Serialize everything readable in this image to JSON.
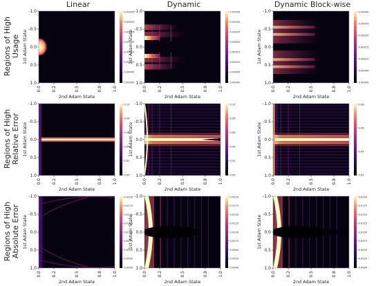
{
  "columns": [
    "Linear",
    "Dynamic",
    "Dynamic Block-wise"
  ],
  "rows": [
    [
      "Regions of High",
      "Usage"
    ],
    [
      "Regions of High",
      "Relative Error"
    ],
    [
      "Regions of High",
      "Absolute Error"
    ]
  ],
  "chart_data": {
    "type": "heatmap",
    "grid": {
      "rows": 3,
      "cols": 3
    },
    "xlabel": "2nd Adam State",
    "ylabel": "1st Adam State",
    "xlim": [
      0.0,
      1.0
    ],
    "ylim": [
      -1.0,
      1.0
    ],
    "xticks": [
      "0.0",
      "0.2",
      "0.5",
      "0.8",
      "1.0"
    ],
    "yticks": [
      "-1.0",
      "-0.5",
      "0.0",
      "0.5",
      "1.0"
    ],
    "colormap": "magma",
    "panels": [
      {
        "row": 0,
        "col": 0,
        "column": "Linear",
        "colorbar": [
          "0.00000",
          "0.00005",
          "0.00010",
          "0.00015",
          "0.00020",
          "0.00025",
          "0.00030",
          "0.00035"
        ]
      },
      {
        "row": 0,
        "col": 1,
        "column": "Dynamic",
        "colorbar": [
          "0.00000",
          "0.00005",
          "0.00010",
          "0.00015",
          "0.00020",
          "0.00025",
          "0.00030",
          "0.00035"
        ]
      },
      {
        "row": 0,
        "col": 2,
        "column": "Dynamic Block-wise",
        "colorbar": [
          "0.00000",
          "0.00005",
          "0.00010",
          "0.00015",
          "0.00020",
          "0.00025",
          "0.00030"
        ]
      },
      {
        "row": 1,
        "col": 0,
        "column": "Linear",
        "colorbar": [
          "0.00",
          "0.02",
          "0.04",
          "0.06",
          "0.08",
          "0.10"
        ]
      },
      {
        "row": 1,
        "col": 1,
        "column": "Dynamic",
        "colorbar": [
          "0.00",
          "0.02",
          "0.04",
          "0.06",
          "0.08",
          "0.10"
        ]
      },
      {
        "row": 1,
        "col": 2,
        "column": "Dynamic Block-wise",
        "colorbar": [
          "0.02",
          "0.04",
          "0.06",
          "0.08"
        ]
      },
      {
        "row": 2,
        "col": 0,
        "column": "Linear",
        "colorbar": [
          "0.0000",
          "0.0025",
          "0.0050",
          "0.0075",
          "0.0100",
          "0.0125",
          "0.0150",
          "0.0175",
          "0.0200"
        ]
      },
      {
        "row": 2,
        "col": 1,
        "column": "Dynamic",
        "colorbar": [
          "0.0000",
          "0.0025",
          "0.0050",
          "0.0075",
          "0.0100",
          "0.0125",
          "0.0150",
          "0.0175",
          "0.0200"
        ]
      },
      {
        "row": 2,
        "col": 2,
        "column": "Dynamic Block-wise",
        "colorbar": [
          "0.0000",
          "0.0025",
          "0.0050",
          "0.0075",
          "0.0100",
          "0.0125",
          "0.0150",
          "0.0175",
          "0.0200"
        ]
      }
    ]
  }
}
